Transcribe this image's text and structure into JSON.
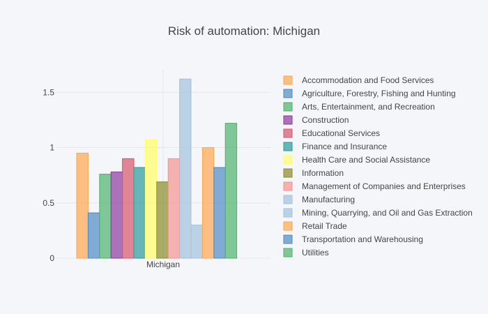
{
  "chart_data": {
    "type": "bar",
    "title": "Risk of automation: Michigan",
    "xlabel": "",
    "ylabel": "",
    "categories": [
      "Michigan"
    ],
    "ylim": [
      0,
      1.7
    ],
    "yticks": [
      "0",
      "0.5",
      "1",
      "1.5"
    ],
    "legend_position": "right",
    "grid": true,
    "series": [
      {
        "name": "Accommodation and Food Services",
        "color": "#ffa64d",
        "values": [
          0.95
        ]
      },
      {
        "name": "Agriculture, Forestry, Fishing and Hunting",
        "color": "#4d8cc4",
        "values": [
          0.41
        ]
      },
      {
        "name": "Arts, Entertainment, and Recreation",
        "color": "#4db36b",
        "values": [
          0.76
        ]
      },
      {
        "name": "Construction",
        "color": "#8b3a9e",
        "values": [
          0.78
        ]
      },
      {
        "name": "Educational Services",
        "color": "#d6556a",
        "values": [
          0.9
        ]
      },
      {
        "name": "Finance and Insurance",
        "color": "#2a9a9a",
        "values": [
          0.82
        ]
      },
      {
        "name": "Health Care and Social Assistance",
        "color": "#ffff66",
        "values": [
          1.07
        ]
      },
      {
        "name": "Information",
        "color": "#8c8c2a",
        "values": [
          0.69
        ]
      },
      {
        "name": "Management of Companies and Enterprises",
        "color": "#f5948f",
        "values": [
          0.9
        ]
      },
      {
        "name": "Manufacturing",
        "color": "#a3c2dc",
        "values": [
          1.62
        ]
      },
      {
        "name": "Mining, Quarrying, and Oil and Gas Extraction",
        "color": "#a3c2dc",
        "values": [
          0.3
        ]
      },
      {
        "name": "Retail Trade",
        "color": "#ffa64d",
        "values": [
          1.0
        ]
      },
      {
        "name": "Transportation and Warehousing",
        "color": "#4d8cc4",
        "values": [
          0.82
        ]
      },
      {
        "name": "Utilities",
        "color": "#4db36b",
        "values": [
          1.22
        ]
      }
    ]
  }
}
